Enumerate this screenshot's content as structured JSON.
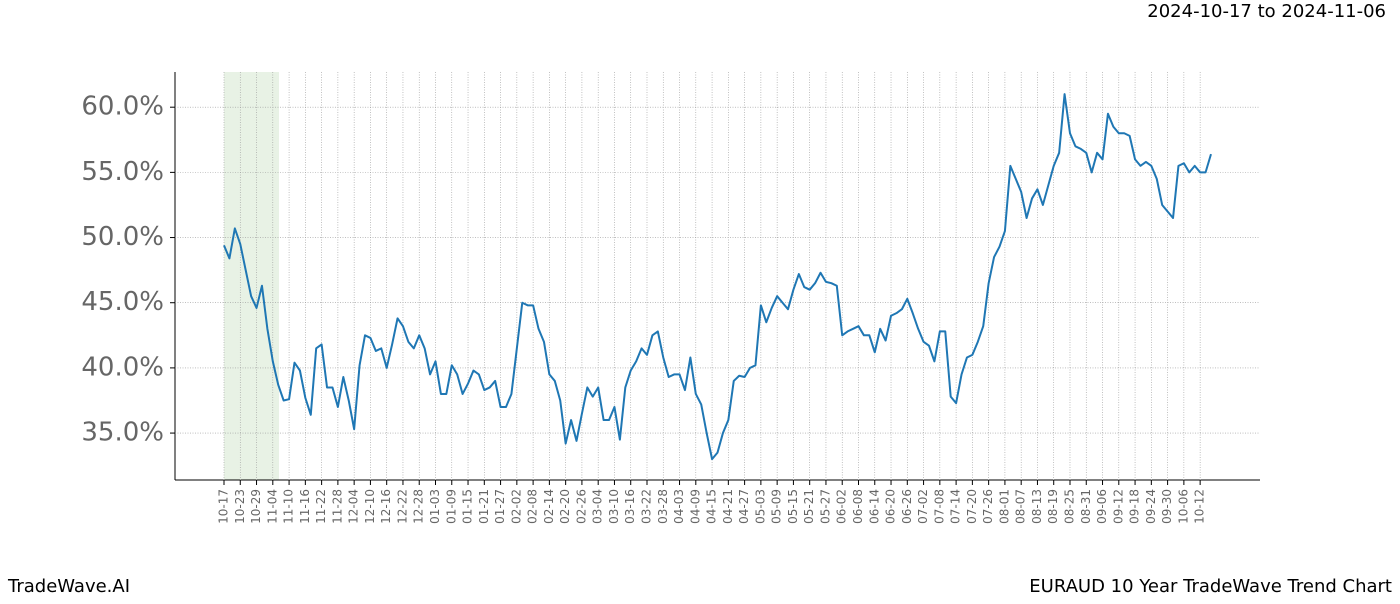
{
  "chart_data": {
    "type": "line",
    "title": "EURAUD 10 Year TradeWave Trend Chart",
    "subtitle": "2024-10-17 to 2024-11-06",
    "brand": "TradeWave.AI",
    "color": "#1f77b4",
    "grid": true,
    "ylim": [
      31.4,
      62.7
    ],
    "yticks": [
      {
        "value": 35,
        "label": "35.0%"
      },
      {
        "value": 40,
        "label": "40.0%"
      },
      {
        "value": 45,
        "label": "45.0%"
      },
      {
        "value": 50,
        "label": "50.0%"
      },
      {
        "value": 55,
        "label": "55.0%"
      },
      {
        "value": 60,
        "label": "60.0%"
      }
    ],
    "categories": [
      "10-17",
      null,
      null,
      "10-23",
      null,
      null,
      "10-29",
      null,
      null,
      "11-04",
      null,
      null,
      "11-10",
      null,
      null,
      "11-16",
      null,
      null,
      "11-22",
      null,
      null,
      "11-28",
      null,
      null,
      "12-04",
      null,
      null,
      "12-10",
      null,
      null,
      "12-16",
      null,
      null,
      "12-22",
      null,
      null,
      "12-28",
      null,
      null,
      "01-03",
      null,
      null,
      "01-09",
      null,
      null,
      "01-15",
      null,
      null,
      "01-21",
      null,
      null,
      "01-27",
      null,
      null,
      "02-02",
      null,
      null,
      "02-08",
      null,
      null,
      "02-14",
      null,
      null,
      "02-20",
      null,
      null,
      "02-26",
      null,
      null,
      "03-04",
      null,
      null,
      "03-10",
      null,
      null,
      "03-16",
      null,
      null,
      "03-22",
      null,
      null,
      "03-28",
      null,
      null,
      "04-03",
      null,
      null,
      "04-09",
      null,
      null,
      "04-15",
      null,
      null,
      "04-21",
      null,
      null,
      "04-27",
      null,
      null,
      "05-03",
      null,
      null,
      "05-09",
      null,
      null,
      "05-15",
      null,
      null,
      "05-21",
      null,
      null,
      "05-27",
      null,
      null,
      "06-02",
      null,
      null,
      "06-08",
      null,
      null,
      "06-14",
      null,
      null,
      "06-20",
      null,
      null,
      "06-26",
      null,
      null,
      "07-02",
      null,
      null,
      "07-08",
      null,
      null,
      "07-14",
      null,
      null,
      "07-20",
      null,
      null,
      "07-26",
      null,
      null,
      "08-01",
      null,
      null,
      "08-07",
      null,
      null,
      "08-13",
      null,
      null,
      "08-19",
      null,
      null,
      "08-25",
      null,
      null,
      "08-31",
      null,
      null,
      "09-06",
      null,
      null,
      "09-12",
      null,
      null,
      "09-18",
      null,
      null,
      "09-24",
      null,
      null,
      "09-30",
      null,
      null,
      "10-06",
      null,
      null,
      "10-12",
      null,
      null
    ],
    "values": [
      49.4,
      48.4,
      50.7,
      49.5,
      47.5,
      45.5,
      44.6,
      46.3,
      43,
      40.5,
      38.7,
      37.5,
      37.6,
      40.4,
      39.8,
      37.7,
      36.4,
      41.5,
      41.8,
      38.5,
      38.5,
      37,
      39.3,
      37.5,
      35.3,
      40.2,
      42.5,
      42.3,
      41.3,
      41.5,
      40,
      41.8,
      43.8,
      43.2,
      42,
      41.5,
      42.5,
      41.5,
      39.5,
      40.5,
      38,
      38,
      40.2,
      39.5,
      38,
      38.8,
      39.8,
      39.5,
      38.3,
      38.5,
      39,
      37,
      37,
      38,
      41.5,
      45,
      44.8,
      44.8,
      43,
      42,
      39.5,
      39,
      37.5,
      34.2,
      36,
      34.4,
      36.5,
      38.5,
      37.8,
      38.5,
      36,
      36,
      37,
      34.5,
      38.5,
      39.8,
      40.5,
      41.5,
      41,
      42.5,
      42.8,
      40.8,
      39.3,
      39.5,
      39.5,
      38.3,
      40.8,
      38,
      37.2,
      35,
      33,
      33.5,
      35,
      36,
      39,
      39.4,
      39.3,
      40,
      40.2,
      44.8,
      43.5,
      44.6,
      45.5,
      45,
      44.5,
      46,
      47.2,
      46.2,
      46,
      46.5,
      47.3,
      46.6,
      46.5,
      46.3,
      42.5,
      42.8,
      43,
      43.2,
      42.5,
      42.5,
      41.2,
      43,
      42.1,
      44,
      44.2,
      44.5,
      45.3,
      44.2,
      43,
      42,
      41.7,
      40.5,
      42.8,
      42.8,
      37.8,
      37.3,
      39.5,
      40.8,
      41,
      42,
      43.2,
      46.5,
      48.5,
      49.3,
      50.5,
      55.5,
      54.5,
      53.5,
      51.5,
      53,
      53.7,
      52.5,
      54,
      55.5,
      56.5,
      61,
      58,
      57,
      56.8,
      56.5,
      55,
      56.5,
      56,
      59.5,
      58.5,
      58,
      58,
      57.8,
      56,
      55.5,
      55.8,
      55.5,
      54.5,
      52.5,
      52,
      51.5,
      55.5,
      55.7,
      55,
      55.5,
      55,
      55,
      56.4
    ]
  }
}
